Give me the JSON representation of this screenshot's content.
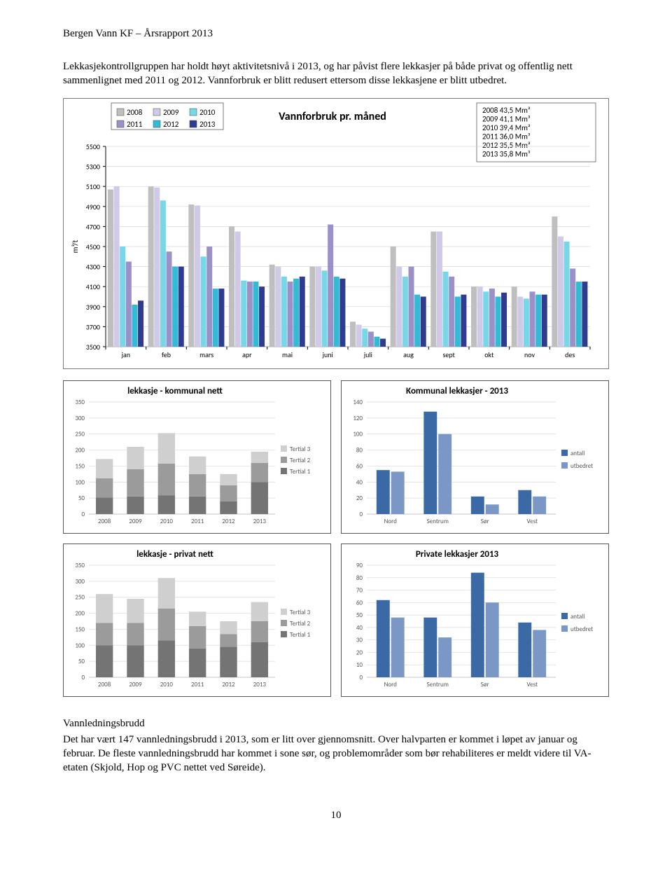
{
  "header": "Bergen Vann KF – Årsrapport 2013",
  "para1": "Lekkasjekontrollgruppen har holdt høyt aktivitetsnivå i 2013, og har påvist flere lekkasjer på både privat og offentlig nett sammenlignet med 2011 og 2012. Vannforbruk er blitt redusert ettersom disse lekkasjene er blitt utbedret.",
  "vannforbruk": {
    "title": "Vannforbruk pr. måned",
    "legend_years": [
      "2008",
      "2009",
      "2010",
      "2011",
      "2012",
      "2013"
    ],
    "legend_colors": [
      "#bfbfbf",
      "#d0c9e8",
      "#77d7e6",
      "#9b90c8",
      "#33bbd5",
      "#2e3b8f"
    ],
    "annual_box": [
      "2008  43,5 Mm³",
      "2009  41,1 Mm³",
      "2010  39,4 Mm³",
      "2011  36,0 Mm³",
      "2012  35,5 Mm³",
      "2013  35,8 Mm³"
    ],
    "months": [
      "jan",
      "feb",
      "mars",
      "apr",
      "mai",
      "juni",
      "juli",
      "aug",
      "sept",
      "okt",
      "nov",
      "des"
    ],
    "ylabel": "m³/t",
    "ymin": 3500,
    "ymax": 5500,
    "ystep": 200,
    "series": {
      "2008": [
        5070,
        5100,
        4920,
        4700,
        4320,
        4300,
        3750,
        4500,
        4650,
        4100,
        4100,
        4800
      ],
      "2009": [
        5100,
        5090,
        4910,
        4650,
        4300,
        4300,
        3720,
        4300,
        4650,
        4100,
        4000,
        4600
      ],
      "2010": [
        4500,
        4960,
        4400,
        4160,
        4200,
        4260,
        3680,
        4200,
        4250,
        4050,
        3980,
        4550
      ],
      "2011": [
        4350,
        4450,
        4500,
        4150,
        4150,
        4720,
        3650,
        4300,
        4200,
        4080,
        4050,
        4280
      ],
      "2012": [
        3920,
        4300,
        4080,
        4150,
        4180,
        4200,
        3600,
        4020,
        4000,
        4000,
        4020,
        4150
      ],
      "2013": [
        3960,
        4300,
        4080,
        4100,
        4200,
        4180,
        3580,
        4000,
        4020,
        4040,
        4020,
        4150
      ]
    }
  },
  "lekkasje_kommunal": {
    "title": "lekkasje - kommunal nett",
    "categories": [
      "2008",
      "2009",
      "2010",
      "2011",
      "2012",
      "2013"
    ],
    "ymin": 0,
    "ymax": 350,
    "ystep": 50,
    "tertials": {
      "Tertial 1": [
        52,
        55,
        58,
        55,
        40,
        100
      ],
      "Tertial 2": [
        60,
        85,
        100,
        70,
        50,
        60
      ],
      "Tertial 3": [
        60,
        70,
        95,
        55,
        35,
        35
      ]
    },
    "colors": {
      "Tertial 1": "#747474",
      "Tertial 2": "#9b9b9b",
      "Tertial 3": "#cfcfcf"
    }
  },
  "kommunal_2013": {
    "title": "Kommunal lekkasjer - 2013",
    "categories": [
      "Nord",
      "Sentrum",
      "Sør",
      "Vest"
    ],
    "ymin": 0,
    "ymax": 140,
    "ystep": 20,
    "antall": [
      55,
      128,
      22,
      30
    ],
    "utbedret": [
      53,
      100,
      12,
      22
    ],
    "colors": {
      "antall": "#3a69a6",
      "utbedret": "#7a97c5"
    }
  },
  "lekkasje_privat": {
    "title": "lekkasje - privat nett",
    "categories": [
      "2008",
      "2009",
      "2010",
      "2011",
      "2012",
      "2013"
    ],
    "ymin": 0,
    "ymax": 350,
    "ystep": 50,
    "tertials": {
      "Tertial 1": [
        100,
        100,
        115,
        90,
        95,
        110
      ],
      "Tertial 2": [
        70,
        70,
        100,
        70,
        40,
        65
      ],
      "Tertial 3": [
        90,
        75,
        95,
        45,
        40,
        60
      ]
    },
    "colors": {
      "Tertial 1": "#747474",
      "Tertial 2": "#9b9b9b",
      "Tertial 3": "#cfcfcf"
    }
  },
  "private_2013": {
    "title": "Private lekkasjer 2013",
    "categories": [
      "Nord",
      "Sentrum",
      "Sør",
      "Vest"
    ],
    "ymin": 0,
    "ymax": 90,
    "ystep": 10,
    "antall": [
      62,
      48,
      84,
      44
    ],
    "utbedret": [
      48,
      32,
      60,
      38
    ],
    "colors": {
      "antall": "#3a69a6",
      "utbedret": "#7a97c5"
    }
  },
  "section_title": "Vannledningsbrudd",
  "para2": "Det har vært 147 vannledningsbrudd i 2013, som er litt over gjennomsnitt. Over halvparten er kommet i løpet av januar og februar. De fleste vannledningsbrudd har kommet i sone sør, og problemområder som bør rehabiliteres er meldt videre til VA-etaten (Skjold, Hop og PVC nettet ved Søreide).",
  "page_number": "10"
}
